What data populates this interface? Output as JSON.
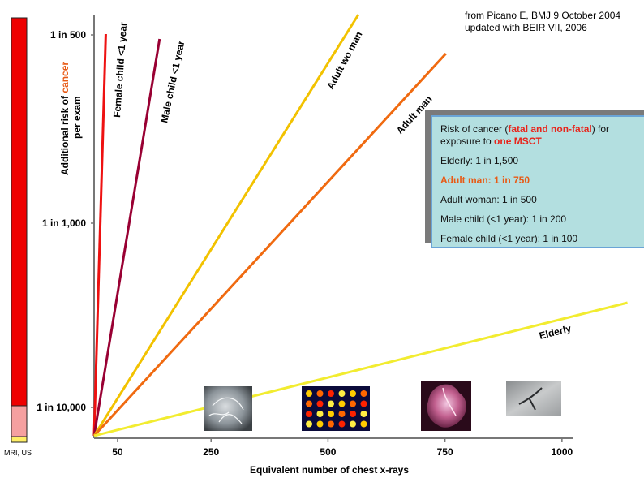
{
  "source": {
    "line1": "from Picano E, BMJ 9 October 2004",
    "line2": "updated  with BEIR VII, 2006"
  },
  "infobox": {
    "title_a": "Risk of cancer (",
    "title_b": "fatal and non-fatal",
    "title_c": ") for",
    "title_d": "exposure to ",
    "title_e": "one  MSCT",
    "rows": [
      "Elderly: 1 in 1,500",
      "Adult man: 1 in 750",
      "Adult woman: 1 in 500",
      "Male child (<1 year): 1 in 200",
      "Female child (<1 year): 1 in 100"
    ]
  },
  "scale_bar": {
    "label": "MRI, US",
    "colors": [
      "#ee0000",
      "#f5a0a0",
      "#ffee66"
    ]
  },
  "chart_data": {
    "type": "line",
    "xlabel": "Equivalent number of chest x-rays",
    "ylabel_a": "Additional risk of ",
    "ylabel_b": "cancer",
    "ylabel_c": "per exam",
    "x_ticks": [
      50,
      250,
      500,
      750,
      1000
    ],
    "x_tick_labels": [
      "50",
      "250",
      "500",
      "750",
      "1000"
    ],
    "y_tick_labels": [
      "1 in 500",
      "1 in 1,000",
      "1 in 10,000"
    ],
    "series": [
      {
        "name": "Female child <1 year",
        "color": "#ee1111",
        "x0": 0,
        "x1": 25
      },
      {
        "name": "Male child <1 year",
        "color": "#990033",
        "x0": 0,
        "x1": 150
      },
      {
        "name": "Adult  wo man",
        "color": "#f2c200",
        "x0": 0,
        "x1": 600
      },
      {
        "name": "Adult   man",
        "color": "#f06a10",
        "x0": 0,
        "x1": 800
      },
      {
        "name": "Elderly",
        "color": "#f2ec30",
        "x0": 0,
        "x1": 1030
      }
    ],
    "thumbnails": [
      "angiography",
      "nuclear-scan",
      "ct-heart",
      "xray-angiogram"
    ]
  }
}
